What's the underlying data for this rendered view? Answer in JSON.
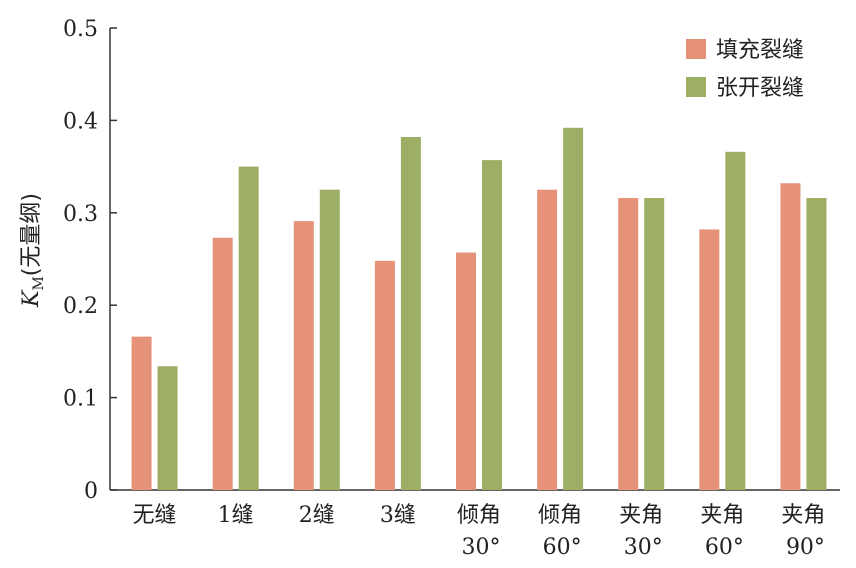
{
  "chart_data": {
    "type": "bar",
    "categories": [
      {
        "line1": "无缝",
        "line2": ""
      },
      {
        "line1": "1缝",
        "line2": ""
      },
      {
        "line1": "2缝",
        "line2": ""
      },
      {
        "line1": "3缝",
        "line2": ""
      },
      {
        "line1": "倾角",
        "line2": "30°"
      },
      {
        "line1": "倾角",
        "line2": "60°"
      },
      {
        "line1": "夹角",
        "line2": "30°"
      },
      {
        "line1": "夹角",
        "line2": "60°"
      },
      {
        "line1": "夹角",
        "line2": "90°"
      }
    ],
    "series": [
      {
        "name": "填充裂缝",
        "color": "#e59279",
        "values": [
          0.166,
          0.273,
          0.291,
          0.248,
          0.257,
          0.325,
          0.316,
          0.282,
          0.332
        ]
      },
      {
        "name": "张开裂缝",
        "color": "#9caf64",
        "values": [
          0.134,
          0.35,
          0.325,
          0.382,
          0.357,
          0.392,
          0.316,
          0.366,
          0.316
        ]
      }
    ],
    "ylabel": {
      "symbol": "K",
      "subscript": "M",
      "unit": "(无量纲)"
    },
    "xlabel": "",
    "title": "",
    "ylim": [
      0,
      0.5
    ],
    "yticks": [
      "0",
      "0.1",
      "0.2",
      "0.3",
      "0.4",
      "0.5"
    ],
    "grid": false,
    "legend_position": "top-right"
  }
}
